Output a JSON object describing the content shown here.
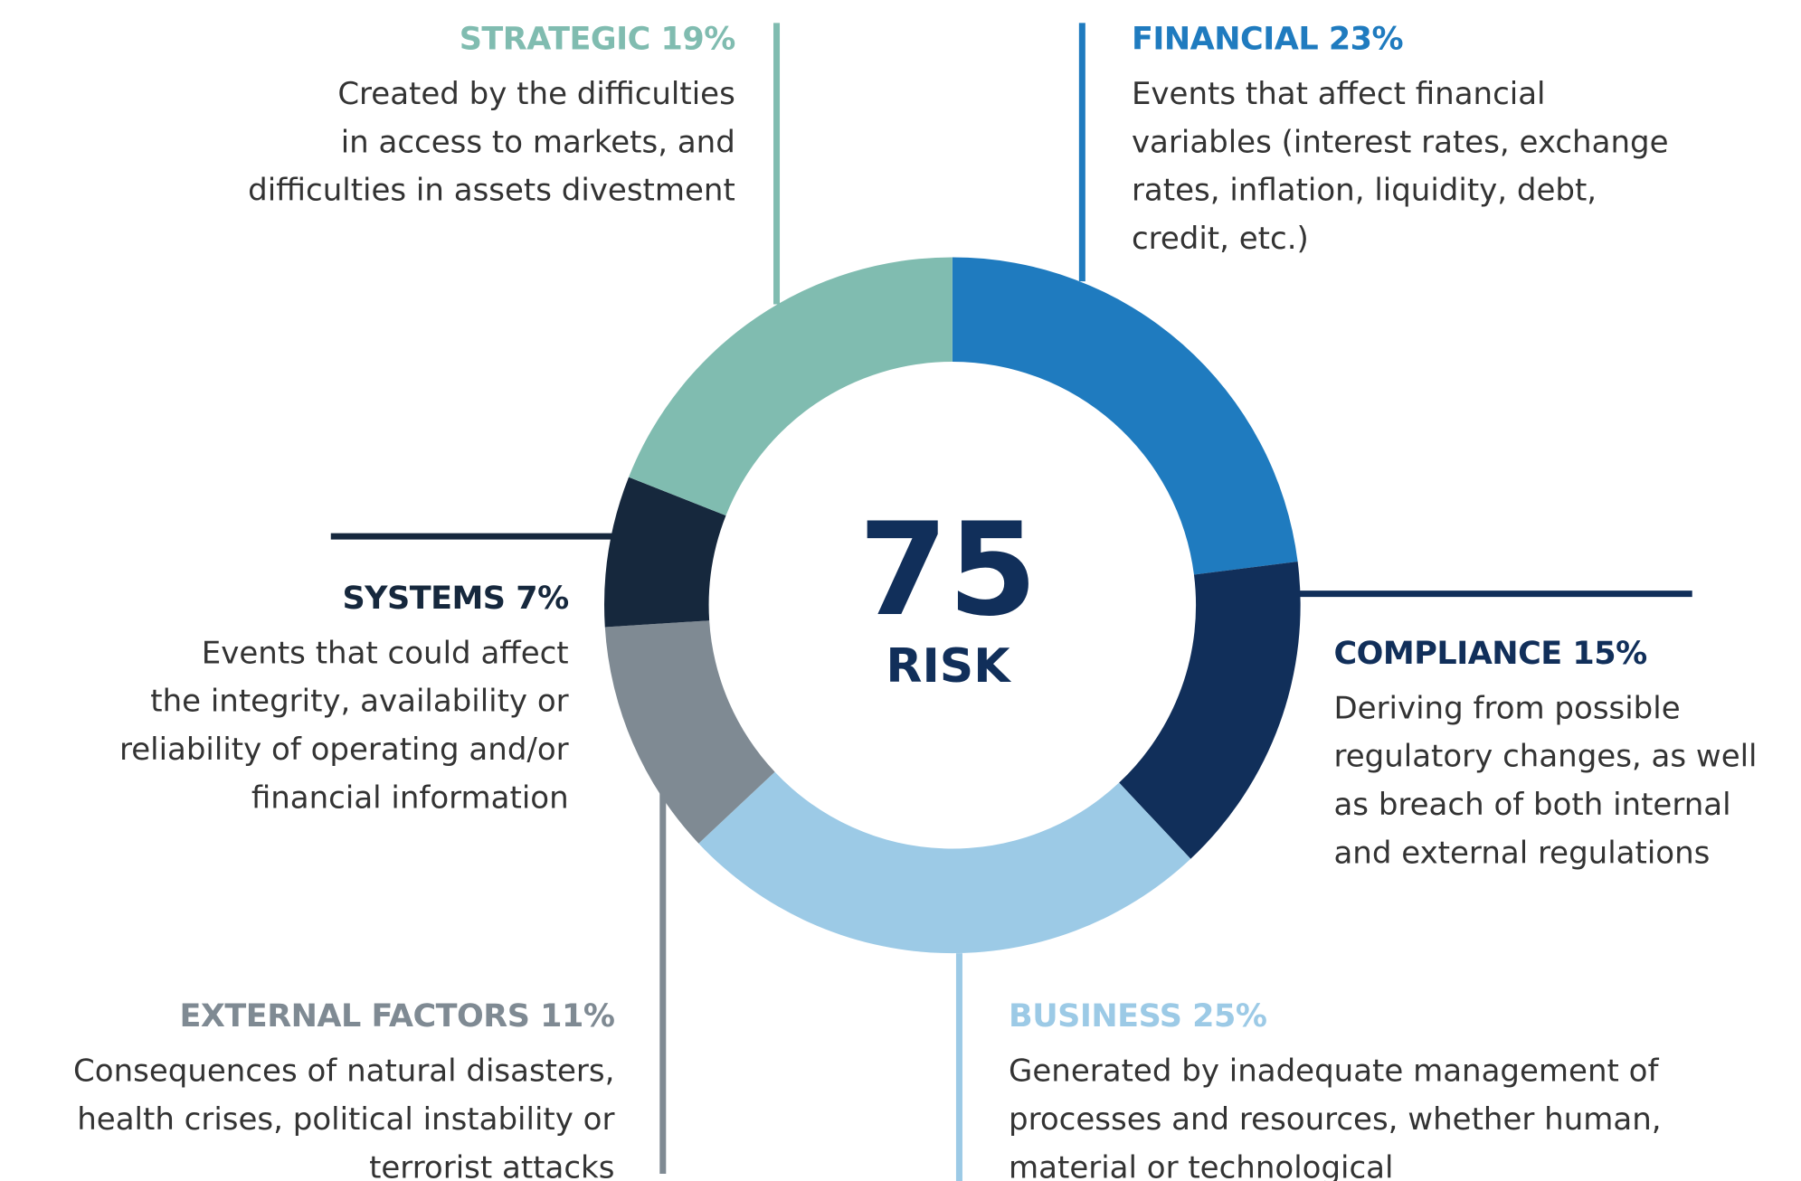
{
  "chart_data": {
    "type": "pie",
    "donut": true,
    "center_value": 75,
    "center_label": "RISK",
    "center_color": "#112f5a",
    "categories": [
      "FINANCIAL",
      "COMPLIANCE",
      "BUSINESS",
      "EXTERNAL FACTORS",
      "SYSTEMS",
      "STRATEGIC"
    ],
    "values": [
      23,
      15,
      25,
      11,
      7,
      19
    ],
    "value_labels": [
      "23%",
      "15%",
      "25%",
      "11%",
      "7%",
      "19%"
    ],
    "colors": [
      "#1f7bbf",
      "#112f5a",
      "#9ccae6",
      "#7f8a93",
      "#16283d",
      "#80bcb0"
    ],
    "descriptions": [
      [
        "Events that affect financial",
        "variables (interest rates, exchange",
        "rates, inflation, liquidity, debt,",
        "credit, etc.)"
      ],
      [
        "Deriving from possible",
        "regulatory changes, as well",
        "as breach of both internal",
        "and external regulations"
      ],
      [
        "Generated by inadequate management of",
        "processes and resources, whether human,",
        "material or technological"
      ],
      [
        "Consequences of natural disasters,",
        "health crises, political instability or",
        "terrorist attacks"
      ],
      [
        "Events that could affect",
        "the integrity, availability or",
        "reliability of operating and/or",
        "financial information"
      ],
      [
        "Created by the difficulties",
        "in access to markets, and",
        "difficulties in assets divestment"
      ]
    ]
  }
}
